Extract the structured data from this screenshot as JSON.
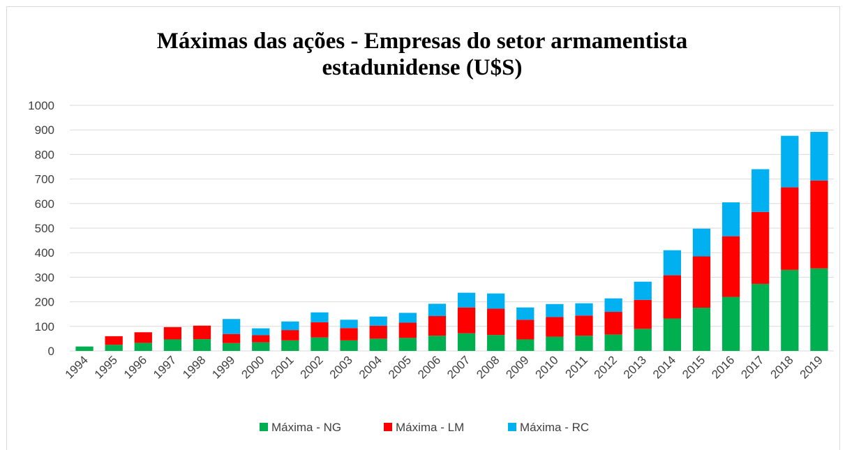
{
  "chart_data": {
    "type": "stacked_bar",
    "title": "Máximas das ações - Empresas do setor armamentista estadunidense (U$S)",
    "categories": [
      "1994",
      "1995",
      "1996",
      "1997",
      "1998",
      "1999",
      "2000",
      "2001",
      "2002",
      "2003",
      "2004",
      "2005",
      "2006",
      "2007",
      "2008",
      "2009",
      "2010",
      "2011",
      "2012",
      "2013",
      "2014",
      "2015",
      "2016",
      "2017",
      "2018",
      "2019"
    ],
    "series": [
      {
        "name": "Máxima - NG",
        "color": "#00b050",
        "values": [
          18,
          25,
          33,
          47,
          48,
          32,
          35,
          43,
          55,
          43,
          50,
          53,
          62,
          72,
          65,
          47,
          58,
          62,
          67,
          90,
          132,
          176,
          220,
          273,
          330,
          336
        ]
      },
      {
        "name": "Máxima - LM",
        "color": "#ff0000",
        "values": [
          0,
          35,
          43,
          50,
          55,
          37,
          29,
          42,
          62,
          50,
          53,
          62,
          80,
          105,
          107,
          80,
          80,
          82,
          92,
          118,
          176,
          209,
          247,
          293,
          336,
          358
        ]
      },
      {
        "name": "Máxima - RC",
        "color": "#00b0f0",
        "values": [
          0,
          0,
          0,
          0,
          0,
          61,
          28,
          35,
          40,
          34,
          37,
          40,
          50,
          60,
          62,
          50,
          53,
          50,
          55,
          74,
          102,
          113,
          138,
          174,
          210,
          198
        ]
      }
    ],
    "ylim": [
      0,
      1000
    ],
    "yticks": [
      0,
      100,
      200,
      300,
      400,
      500,
      600,
      700,
      800,
      900,
      1000
    ],
    "grid": true,
    "legend": "bottom"
  }
}
